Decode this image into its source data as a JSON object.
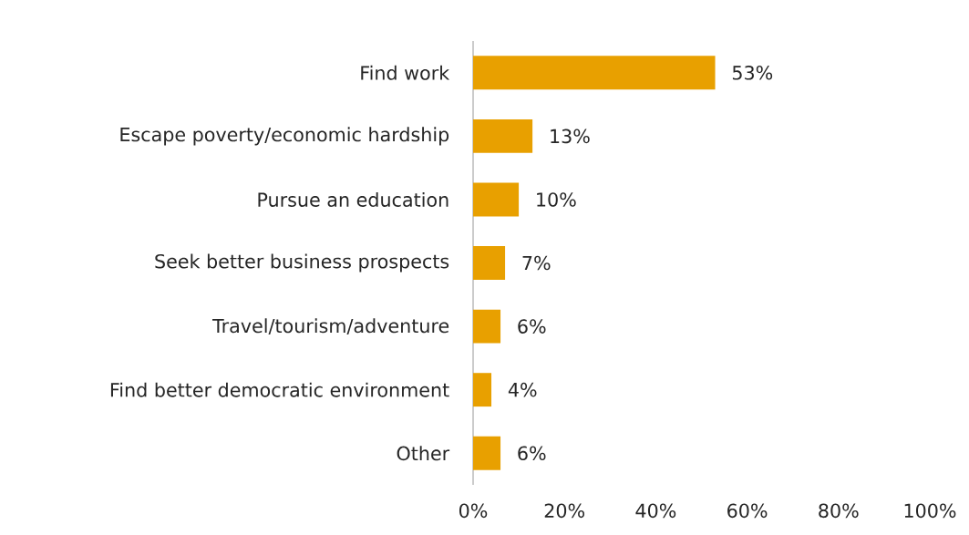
{
  "chart_data": {
    "type": "bar",
    "orientation": "horizontal",
    "categories": [
      "Find work",
      "Escape poverty/economic hardship",
      "Pursue an education",
      "Seek better business prospects",
      "Travel/tourism/adventure",
      "Find better democratic environment",
      "Other"
    ],
    "values": [
      53,
      13,
      10,
      7,
      6,
      4,
      6
    ],
    "value_labels": [
      "53%",
      "13%",
      "10%",
      "7%",
      "6%",
      "4%",
      "6%"
    ],
    "color": "#e8a000",
    "xlim": [
      0,
      100
    ],
    "xticks": [
      {
        "value": 0,
        "label": "0%"
      },
      {
        "value": 20,
        "label": "20%"
      },
      {
        "value": 40,
        "label": "40%"
      },
      {
        "value": 60,
        "label": "60%"
      },
      {
        "value": 80,
        "label": "80%"
      },
      {
        "value": 100,
        "label": "100%"
      }
    ],
    "grid": false
  }
}
